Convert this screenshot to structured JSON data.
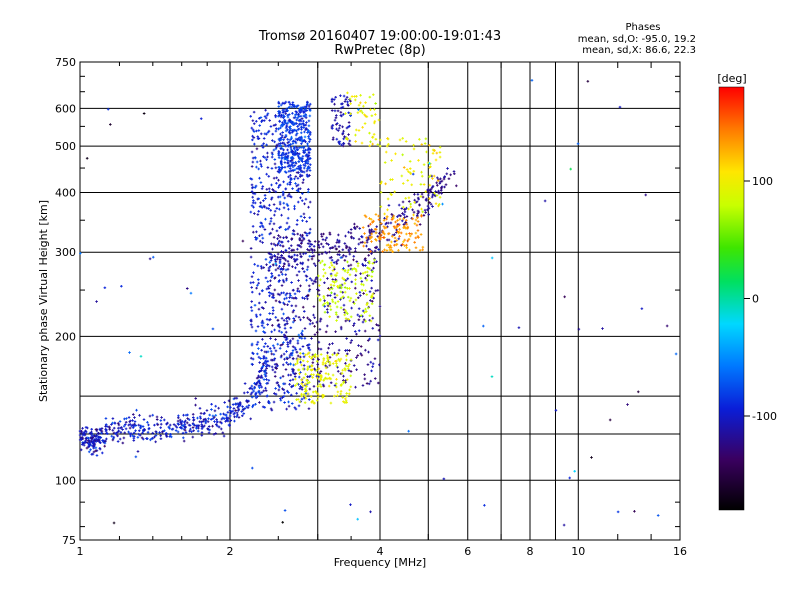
{
  "chart_data": {
    "type": "scatter",
    "title": "Tromsø 20160407 19:00:00-19:01:43",
    "subtitle": "RwPretec (8p)",
    "xlabel": "Frequency [MHz]",
    "ylabel": "Stationary phase Virtual Height [km]",
    "x_scale": "log",
    "y_scale": "log",
    "xlim": [
      1,
      16
    ],
    "ylim": [
      75,
      750
    ],
    "x_ticks": [
      1,
      2,
      4,
      6,
      8,
      10,
      16
    ],
    "x_tick_labels": [
      "1",
      "2",
      "4",
      "6",
      "8",
      "10",
      "16"
    ],
    "x_minor_gridlines": [
      3,
      5,
      7,
      9
    ],
    "y_ticks": [
      75,
      100,
      200,
      300,
      400,
      500,
      600,
      750
    ],
    "y_tick_labels": [
      "75",
      "100",
      "200",
      "300",
      "400",
      "500",
      "600",
      "750"
    ],
    "y_minor_gridlines": [
      125,
      150
    ],
    "grid": true,
    "stats": {
      "heading": "Phases",
      "line_o": "mean, sd,O: -95.0, 19.2",
      "line_x": "mean, sd,X: 86.6, 22.3"
    },
    "colorbar": {
      "label": "[deg]",
      "range": [
        -180,
        180
      ],
      "ticks": [
        -100,
        0,
        100
      ],
      "tick_labels": [
        "-100",
        "0",
        "100"
      ]
    },
    "clusters": [
      {
        "kind": "curve",
        "pts": [
          [
            1.0,
            125
          ],
          [
            1.05,
            120
          ],
          [
            1.1,
            124
          ],
          [
            1.2,
            127
          ],
          [
            1.4,
            128
          ],
          [
            1.6,
            130
          ],
          [
            1.8,
            132
          ],
          [
            2.0,
            137
          ],
          [
            2.2,
            148
          ],
          [
            2.4,
            175
          ]
        ],
        "spread": 0.05,
        "n": 540,
        "phase": -100,
        "phase_sd": 22
      },
      {
        "kind": "box",
        "f": [
          2.2,
          2.9
        ],
        "h": [
          140,
          600
        ],
        "n": 700,
        "phase": -95,
        "phase_sd": 18
      },
      {
        "kind": "box",
        "f": [
          2.5,
          2.9
        ],
        "h": [
          440,
          620
        ],
        "n": 340,
        "phase": -85,
        "phase_sd": 14
      },
      {
        "kind": "box",
        "f": [
          2.4,
          4.0
        ],
        "h": [
          155,
          330
        ],
        "n": 360,
        "phase": -118,
        "phase_sd": 16
      },
      {
        "kind": "curve",
        "pts": [
          [
            2.4,
            290
          ],
          [
            2.8,
            300
          ],
          [
            3.3,
            310
          ],
          [
            3.9,
            320
          ],
          [
            4.4,
            350
          ],
          [
            5.0,
            390
          ],
          [
            5.6,
            440
          ]
        ],
        "spread": 0.06,
        "n": 260,
        "phase": -120,
        "phase_sd": 12
      },
      {
        "kind": "box",
        "f": [
          3.2,
          3.5
        ],
        "h": [
          500,
          640
        ],
        "n": 70,
        "phase": -110,
        "phase_sd": 15
      },
      {
        "kind": "box",
        "f": [
          2.7,
          3.5
        ],
        "h": [
          145,
          185
        ],
        "n": 170,
        "phase": 95,
        "phase_sd": 12
      },
      {
        "kind": "box",
        "f": [
          3.0,
          3.9
        ],
        "h": [
          215,
          290
        ],
        "n": 130,
        "phase": 85,
        "phase_sd": 14
      },
      {
        "kind": "box",
        "f": [
          3.7,
          4.9
        ],
        "h": [
          300,
          360
        ],
        "n": 130,
        "phase": 135,
        "phase_sd": 15
      },
      {
        "kind": "box",
        "f": [
          4.0,
          5.3
        ],
        "h": [
          360,
          520
        ],
        "n": 90,
        "phase": 100,
        "phase_sd": 16
      },
      {
        "kind": "box",
        "f": [
          3.4,
          4.0
        ],
        "h": [
          500,
          650
        ],
        "n": 50,
        "phase": 95,
        "phase_sd": 18
      },
      {
        "kind": "box",
        "f": [
          1.0,
          16.0
        ],
        "h": [
          80,
          700
        ],
        "n": 70,
        "phase": -100,
        "phase_sd": 60
      }
    ]
  }
}
